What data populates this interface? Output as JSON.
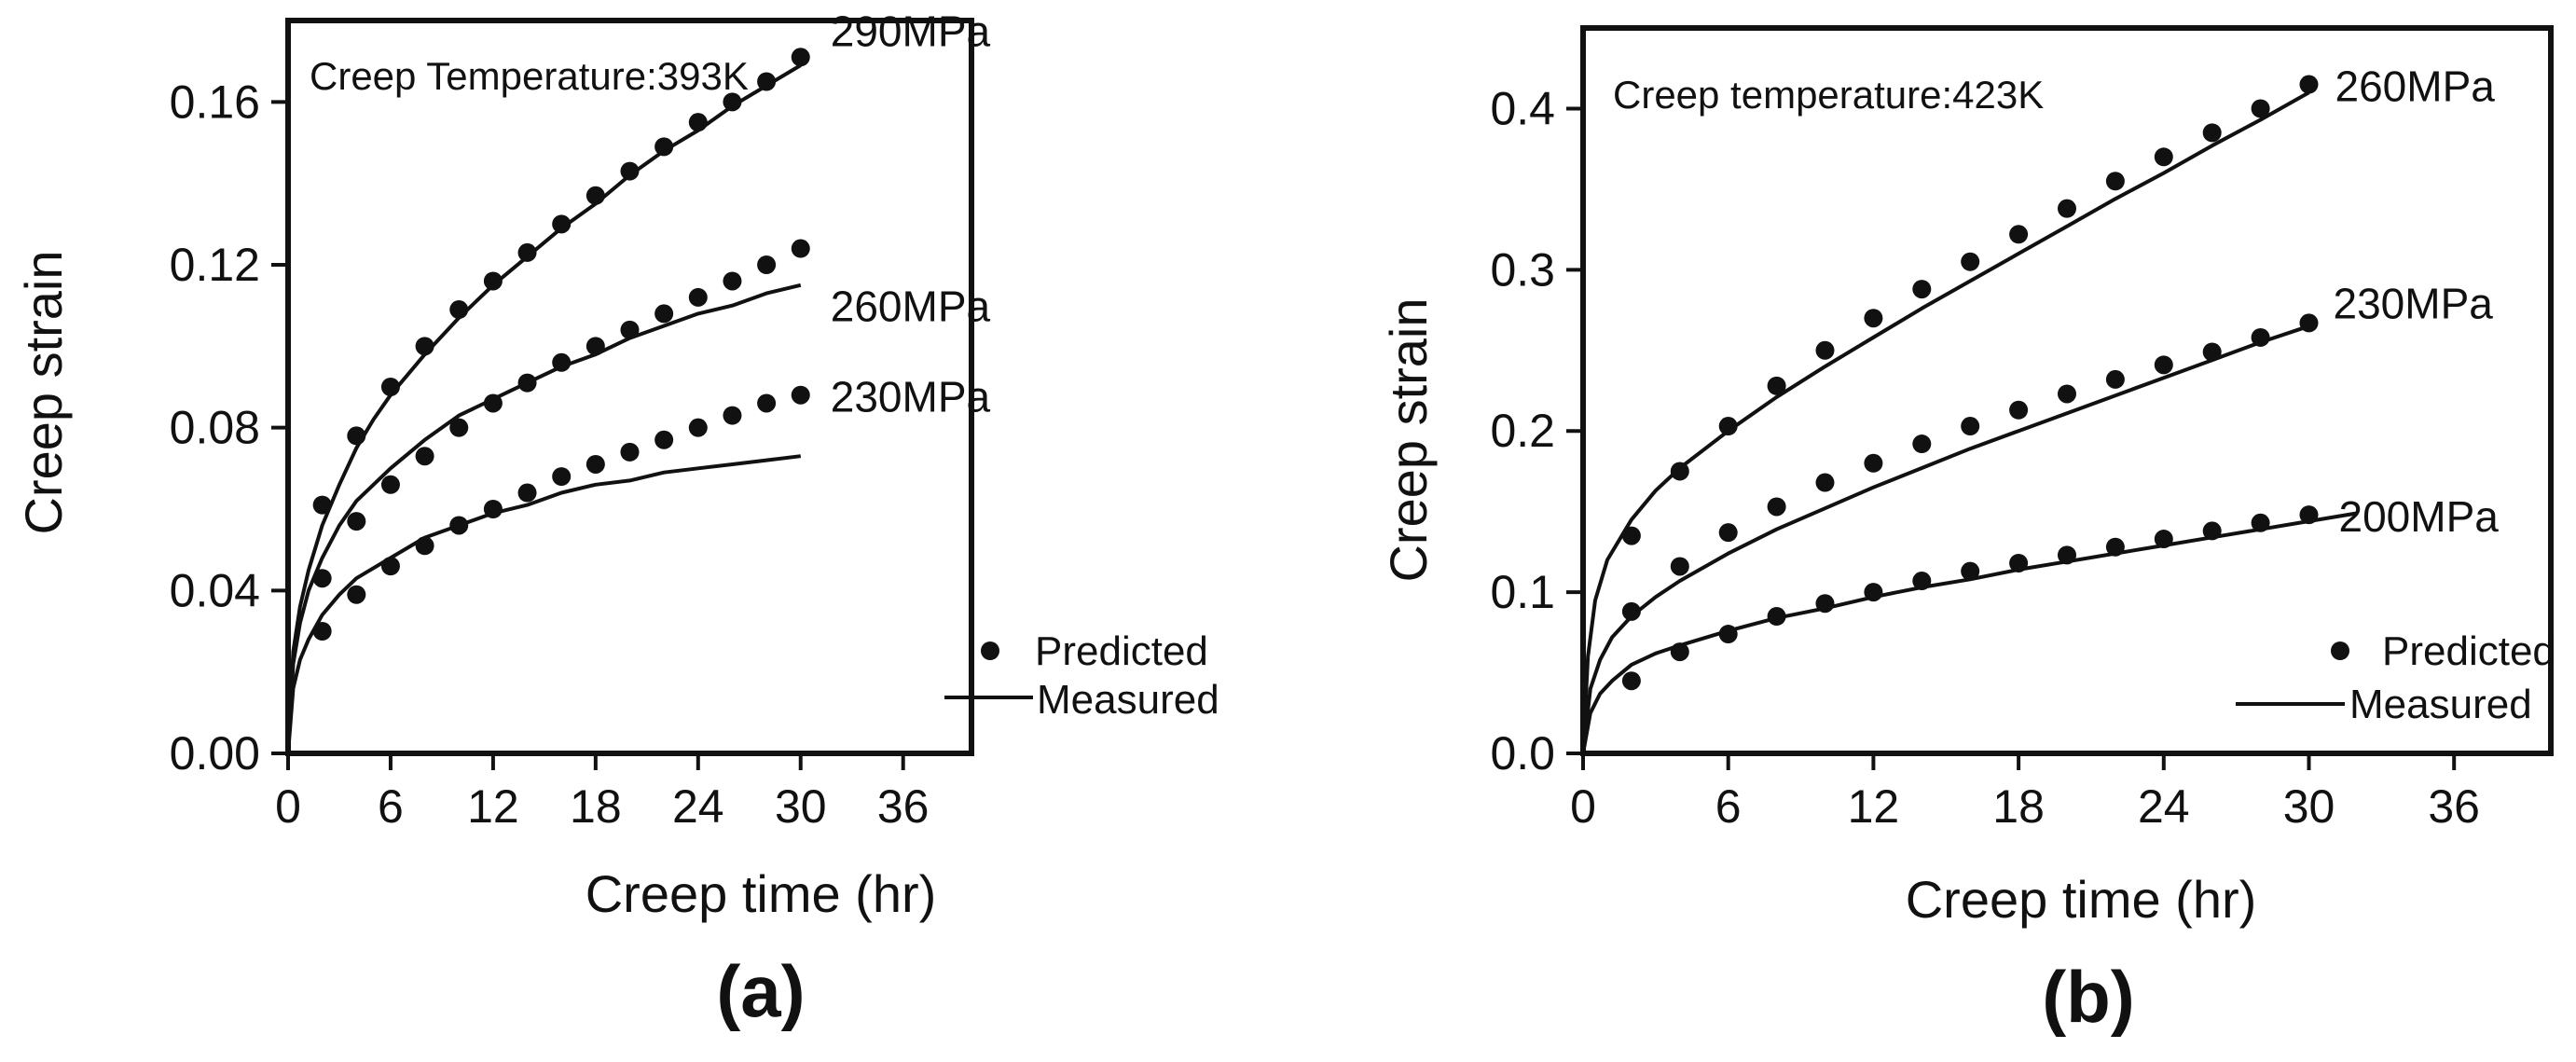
{
  "chart_data": [
    {
      "type": "scatter",
      "panel": "(a)",
      "annotation": "Creep Temperature:393K",
      "xlabel": "Creep time (hr)",
      "ylabel": "Creep strain",
      "xlim": [
        0,
        40
      ],
      "ylim": [
        0,
        0.18
      ],
      "xticks": [
        0,
        6,
        12,
        18,
        24,
        30,
        36
      ],
      "xtick_labels": [
        "0",
        "6",
        "12",
        "18",
        "24",
        "30",
        "36"
      ],
      "yticks": [
        0,
        0.04,
        0.08,
        0.12,
        0.16
      ],
      "ytick_labels": [
        "0.00",
        "0.04",
        "0.08",
        "0.12",
        "0.16"
      ],
      "legend": {
        "predicted": "Predicted",
        "measured": "Measured",
        "position": "bottom-right"
      },
      "series": [
        {
          "name": "290MPa",
          "predicted": [
            [
              2,
              0.061
            ],
            [
              4,
              0.078
            ],
            [
              6,
              0.09
            ],
            [
              8,
              0.1
            ],
            [
              10,
              0.109
            ],
            [
              12,
              0.116
            ],
            [
              14,
              0.123
            ],
            [
              16,
              0.13
            ],
            [
              18,
              0.137
            ],
            [
              20,
              0.143
            ],
            [
              22,
              0.149
            ],
            [
              24,
              0.155
            ],
            [
              26,
              0.16
            ],
            [
              28,
              0.165
            ],
            [
              30,
              0.171
            ]
          ],
          "measured": [
            [
              0,
              0
            ],
            [
              0.3,
              0.025
            ],
            [
              0.7,
              0.036
            ],
            [
              1.2,
              0.045
            ],
            [
              2,
              0.056
            ],
            [
              3,
              0.066
            ],
            [
              4,
              0.075
            ],
            [
              5,
              0.082
            ],
            [
              6,
              0.088
            ],
            [
              8,
              0.098
            ],
            [
              10,
              0.107
            ],
            [
              12,
              0.115
            ],
            [
              14,
              0.122
            ],
            [
              16,
              0.129
            ],
            [
              18,
              0.135
            ],
            [
              20,
              0.142
            ],
            [
              22,
              0.148
            ],
            [
              24,
              0.153
            ],
            [
              26,
              0.159
            ],
            [
              28,
              0.164
            ],
            [
              30,
              0.169
            ]
          ]
        },
        {
          "name": "260MPa",
          "predicted": [
            [
              2,
              0.043
            ],
            [
              4,
              0.057
            ],
            [
              6,
              0.066
            ],
            [
              8,
              0.073
            ],
            [
              10,
              0.08
            ],
            [
              12,
              0.086
            ],
            [
              14,
              0.091
            ],
            [
              16,
              0.096
            ],
            [
              18,
              0.1
            ],
            [
              20,
              0.104
            ],
            [
              22,
              0.108
            ],
            [
              24,
              0.112
            ],
            [
              26,
              0.116
            ],
            [
              28,
              0.12
            ],
            [
              30,
              0.124
            ]
          ],
          "measured": [
            [
              0,
              0
            ],
            [
              0.3,
              0.022
            ],
            [
              0.7,
              0.032
            ],
            [
              1.2,
              0.04
            ],
            [
              2,
              0.048
            ],
            [
              3,
              0.056
            ],
            [
              4,
              0.062
            ],
            [
              5,
              0.066
            ],
            [
              6,
              0.07
            ],
            [
              8,
              0.077
            ],
            [
              10,
              0.083
            ],
            [
              12,
              0.087
            ],
            [
              14,
              0.091
            ],
            [
              16,
              0.095
            ],
            [
              18,
              0.098
            ],
            [
              20,
              0.102
            ],
            [
              22,
              0.105
            ],
            [
              24,
              0.108
            ],
            [
              26,
              0.11
            ],
            [
              28,
              0.113
            ],
            [
              30,
              0.115
            ]
          ]
        },
        {
          "name": "230MPa",
          "predicted": [
            [
              2,
              0.03
            ],
            [
              4,
              0.039
            ],
            [
              6,
              0.046
            ],
            [
              8,
              0.051
            ],
            [
              10,
              0.056
            ],
            [
              12,
              0.06
            ],
            [
              14,
              0.064
            ],
            [
              16,
              0.068
            ],
            [
              18,
              0.071
            ],
            [
              20,
              0.074
            ],
            [
              22,
              0.077
            ],
            [
              24,
              0.08
            ],
            [
              26,
              0.083
            ],
            [
              28,
              0.086
            ],
            [
              30,
              0.088
            ]
          ],
          "measured": [
            [
              0,
              0
            ],
            [
              0.3,
              0.016
            ],
            [
              0.7,
              0.023
            ],
            [
              1.2,
              0.028
            ],
            [
              2,
              0.034
            ],
            [
              3,
              0.039
            ],
            [
              4,
              0.043
            ],
            [
              6,
              0.048
            ],
            [
              8,
              0.053
            ],
            [
              10,
              0.056
            ],
            [
              12,
              0.059
            ],
            [
              14,
              0.061
            ],
            [
              16,
              0.064
            ],
            [
              18,
              0.066
            ],
            [
              20,
              0.067
            ],
            [
              22,
              0.069
            ],
            [
              24,
              0.07
            ],
            [
              26,
              0.071
            ],
            [
              28,
              0.072
            ],
            [
              30,
              0.073
            ]
          ]
        }
      ]
    },
    {
      "type": "scatter",
      "panel": "(b)",
      "annotation": "Creep temperature:423K",
      "xlabel": "Creep time (hr)",
      "ylabel": "Creep strain",
      "xlim": [
        0,
        40
      ],
      "ylim": [
        0,
        0.45
      ],
      "xticks": [
        0,
        6,
        12,
        18,
        24,
        30,
        36
      ],
      "xtick_labels": [
        "0",
        "6",
        "12",
        "18",
        "24",
        "30",
        "36"
      ],
      "yticks": [
        0,
        0.1,
        0.2,
        0.3,
        0.4
      ],
      "ytick_labels": [
        "0.0",
        "0.1",
        "0.2",
        "0.3",
        "0.4"
      ],
      "legend": {
        "predicted": "Predicted",
        "measured": "Measured",
        "position": "bottom-right"
      },
      "series": [
        {
          "name": "260MPa",
          "predicted": [
            [
              2,
              0.135
            ],
            [
              4,
              0.175
            ],
            [
              6,
              0.203
            ],
            [
              8,
              0.228
            ],
            [
              10,
              0.25
            ],
            [
              12,
              0.27
            ],
            [
              14,
              0.288
            ],
            [
              16,
              0.305
            ],
            [
              18,
              0.322
            ],
            [
              20,
              0.338
            ],
            [
              22,
              0.355
            ],
            [
              24,
              0.37
            ],
            [
              26,
              0.385
            ],
            [
              28,
              0.4
            ],
            [
              30,
              0.415
            ]
          ],
          "measured": [
            [
              0,
              0
            ],
            [
              0.2,
              0.06
            ],
            [
              0.5,
              0.095
            ],
            [
              1,
              0.12
            ],
            [
              2,
              0.145
            ],
            [
              3,
              0.163
            ],
            [
              4,
              0.177
            ],
            [
              6,
              0.2
            ],
            [
              8,
              0.221
            ],
            [
              10,
              0.24
            ],
            [
              12,
              0.258
            ],
            [
              14,
              0.276
            ],
            [
              16,
              0.293
            ],
            [
              18,
              0.31
            ],
            [
              20,
              0.327
            ],
            [
              22,
              0.344
            ],
            [
              24,
              0.36
            ],
            [
              26,
              0.377
            ],
            [
              28,
              0.393
            ],
            [
              30,
              0.41
            ]
          ]
        },
        {
          "name": "230MPa",
          "predicted": [
            [
              2,
              0.088
            ],
            [
              4,
              0.116
            ],
            [
              6,
              0.137
            ],
            [
              8,
              0.153
            ],
            [
              10,
              0.168
            ],
            [
              12,
              0.18
            ],
            [
              14,
              0.192
            ],
            [
              16,
              0.203
            ],
            [
              18,
              0.213
            ],
            [
              20,
              0.223
            ],
            [
              22,
              0.232
            ],
            [
              24,
              0.241
            ],
            [
              26,
              0.249
            ],
            [
              28,
              0.258
            ],
            [
              30,
              0.267
            ]
          ],
          "measured": [
            [
              0,
              0
            ],
            [
              0.3,
              0.04
            ],
            [
              0.7,
              0.058
            ],
            [
              1.2,
              0.072
            ],
            [
              2,
              0.085
            ],
            [
              3,
              0.097
            ],
            [
              4,
              0.107
            ],
            [
              6,
              0.124
            ],
            [
              8,
              0.139
            ],
            [
              10,
              0.152
            ],
            [
              12,
              0.165
            ],
            [
              14,
              0.177
            ],
            [
              16,
              0.189
            ],
            [
              18,
              0.2
            ],
            [
              20,
              0.211
            ],
            [
              22,
              0.222
            ],
            [
              24,
              0.233
            ],
            [
              26,
              0.244
            ],
            [
              28,
              0.255
            ],
            [
              30,
              0.265
            ]
          ]
        },
        {
          "name": "200MPa",
          "predicted": [
            [
              2,
              0.045
            ],
            [
              4,
              0.063
            ],
            [
              6,
              0.074
            ],
            [
              8,
              0.085
            ],
            [
              10,
              0.093
            ],
            [
              12,
              0.1
            ],
            [
              14,
              0.107
            ],
            [
              16,
              0.113
            ],
            [
              18,
              0.118
            ],
            [
              20,
              0.123
            ],
            [
              22,
              0.128
            ],
            [
              24,
              0.133
            ],
            [
              26,
              0.138
            ],
            [
              28,
              0.143
            ],
            [
              30,
              0.148
            ]
          ],
          "measured": [
            [
              0,
              0
            ],
            [
              0.3,
              0.025
            ],
            [
              0.7,
              0.037
            ],
            [
              1.2,
              0.045
            ],
            [
              2,
              0.055
            ],
            [
              3,
              0.062
            ],
            [
              4,
              0.067
            ],
            [
              6,
              0.076
            ],
            [
              8,
              0.084
            ],
            [
              10,
              0.09
            ],
            [
              12,
              0.097
            ],
            [
              14,
              0.103
            ],
            [
              16,
              0.108
            ],
            [
              18,
              0.114
            ],
            [
              20,
              0.119
            ],
            [
              22,
              0.124
            ],
            [
              24,
              0.129
            ],
            [
              26,
              0.134
            ],
            [
              28,
              0.139
            ],
            [
              30,
              0.144
            ],
            [
              32,
              0.149
            ]
          ]
        }
      ]
    }
  ]
}
